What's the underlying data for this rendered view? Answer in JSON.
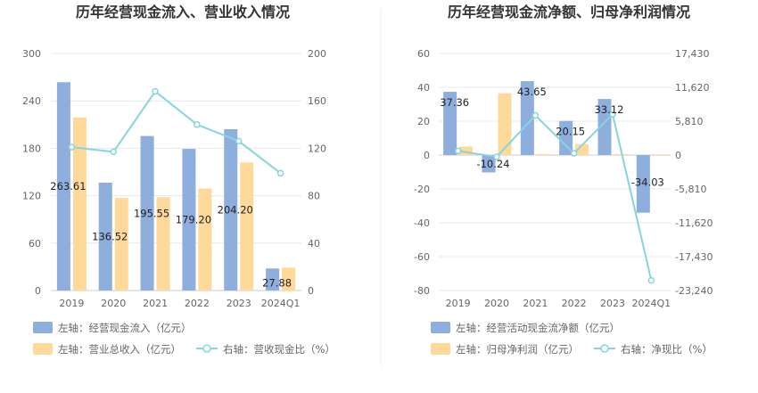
{
  "chart_data": [
    {
      "type": "bar",
      "title": "历年经营现金流入、营业收入情况",
      "categories": [
        "2019",
        "2020",
        "2021",
        "2022",
        "2023",
        "2024Q1"
      ],
      "y_left": {
        "ticks": [
          "0",
          "60",
          "120",
          "180",
          "240",
          "300"
        ],
        "ylim": [
          0,
          300
        ]
      },
      "y_right": {
        "ticks": [
          "0",
          "40",
          "80",
          "120",
          "160",
          "200"
        ],
        "ylim": [
          0,
          200
        ]
      },
      "series": [
        {
          "name": "左轴：经营现金流入（亿元）",
          "type": "bar",
          "axis": "left",
          "color": "#8eaede",
          "values": [
            263.61,
            136.52,
            195.55,
            179.2,
            204.2,
            27.88
          ],
          "labels": [
            "263.61",
            "136.52",
            "195.55",
            "179.20",
            "204.20",
            "27.88"
          ]
        },
        {
          "name": "左轴：营业总收入（亿元）",
          "type": "bar",
          "axis": "left",
          "color": "#ffd99a",
          "values": [
            219,
            117,
            118,
            129,
            162,
            29
          ]
        },
        {
          "name": "右轴：营收现金比（%）",
          "type": "line",
          "axis": "right",
          "color": "#86d5de",
          "values": [
            121,
            117,
            168,
            140,
            126,
            99
          ]
        }
      ],
      "grid": true,
      "legend": "bottom"
    },
    {
      "type": "bar",
      "title": "历年经营现金流净额、归母净利润情况",
      "categories": [
        "2019",
        "2020",
        "2021",
        "2022",
        "2023",
        "2024Q1"
      ],
      "y_left": {
        "ticks": [
          "-80",
          "-60",
          "-40",
          "-20",
          "0",
          "20",
          "40",
          "60"
        ],
        "ylim": [
          -80,
          60
        ]
      },
      "y_right": {
        "ticks": [
          "-23,240",
          "-17,430",
          "-11,620",
          "-5,810",
          "0",
          "5,810",
          "11,620",
          "17,430"
        ],
        "ylim": [
          -23240,
          17430
        ]
      },
      "series": [
        {
          "name": "左轴：经营活动现金流净额（亿元）",
          "type": "bar",
          "axis": "left",
          "color": "#8eaede",
          "values": [
            37.36,
            -10.24,
            43.65,
            20.15,
            33.12,
            -34.03
          ],
          "labels": [
            "37.36",
            "-10.24",
            "43.65",
            "20.15",
            "33.12",
            "-34.03"
          ]
        },
        {
          "name": "左轴：归母净利润（亿元）",
          "type": "bar",
          "axis": "left",
          "color": "#ffd99a",
          "values": [
            5,
            36.5,
            0.6,
            6.5,
            0.6,
            -0.1
          ]
        },
        {
          "name": "右轴：净现比（%）",
          "type": "line",
          "axis": "right",
          "color": "#86d5de",
          "values": [
            700,
            -300,
            6800,
            300,
            7000,
            -21500
          ]
        }
      ],
      "grid": true,
      "legend": "bottom"
    }
  ]
}
